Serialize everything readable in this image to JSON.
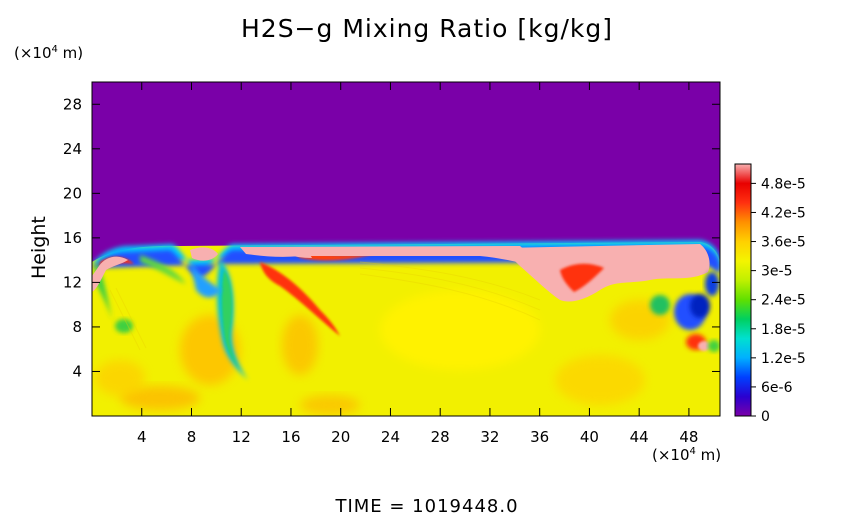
{
  "chart_data": {
    "type": "heatmap",
    "title": "H2S−g Mixing Ratio [kg/kg]",
    "ylabel": "Height",
    "x_unit_label": {
      "prefix": "(×10",
      "exp": "4",
      "suffix": " m)"
    },
    "y_unit_label": {
      "prefix": "(×10",
      "exp": "4",
      "suffix": " m)"
    },
    "x_ticks": [
      4,
      8,
      12,
      16,
      20,
      24,
      28,
      32,
      36,
      40,
      44,
      48
    ],
    "y_ticks": [
      4,
      8,
      12,
      16,
      20,
      24,
      28
    ],
    "xlim": [
      0,
      50.5
    ],
    "ylim": [
      0,
      30
    ],
    "colorbar": {
      "labels": [
        "4.8e-5",
        "4.2e-5",
        "3.6e-5",
        "3e-5",
        "2.4e-5",
        "1.8e-5",
        "1.2e-5",
        "6e-6",
        "0"
      ],
      "values": [
        4.8e-05,
        4.2e-05,
        3.6e-05,
        3e-05,
        2.4e-05,
        1.8e-05,
        1.2e-05,
        6e-06,
        0
      ],
      "range": [
        0,
        5.2e-05
      ],
      "colors": [
        "#7a00a8",
        "#2a00d0",
        "#0040ff",
        "#00b0ff",
        "#00e0d0",
        "#00d060",
        "#60e000",
        "#c0f000",
        "#f4f400",
        "#ffd000",
        "#ff9000",
        "#ff3010",
        "#e80000",
        "#f8b0b0"
      ]
    },
    "time_label": "TIME  =  1019448.0"
  }
}
